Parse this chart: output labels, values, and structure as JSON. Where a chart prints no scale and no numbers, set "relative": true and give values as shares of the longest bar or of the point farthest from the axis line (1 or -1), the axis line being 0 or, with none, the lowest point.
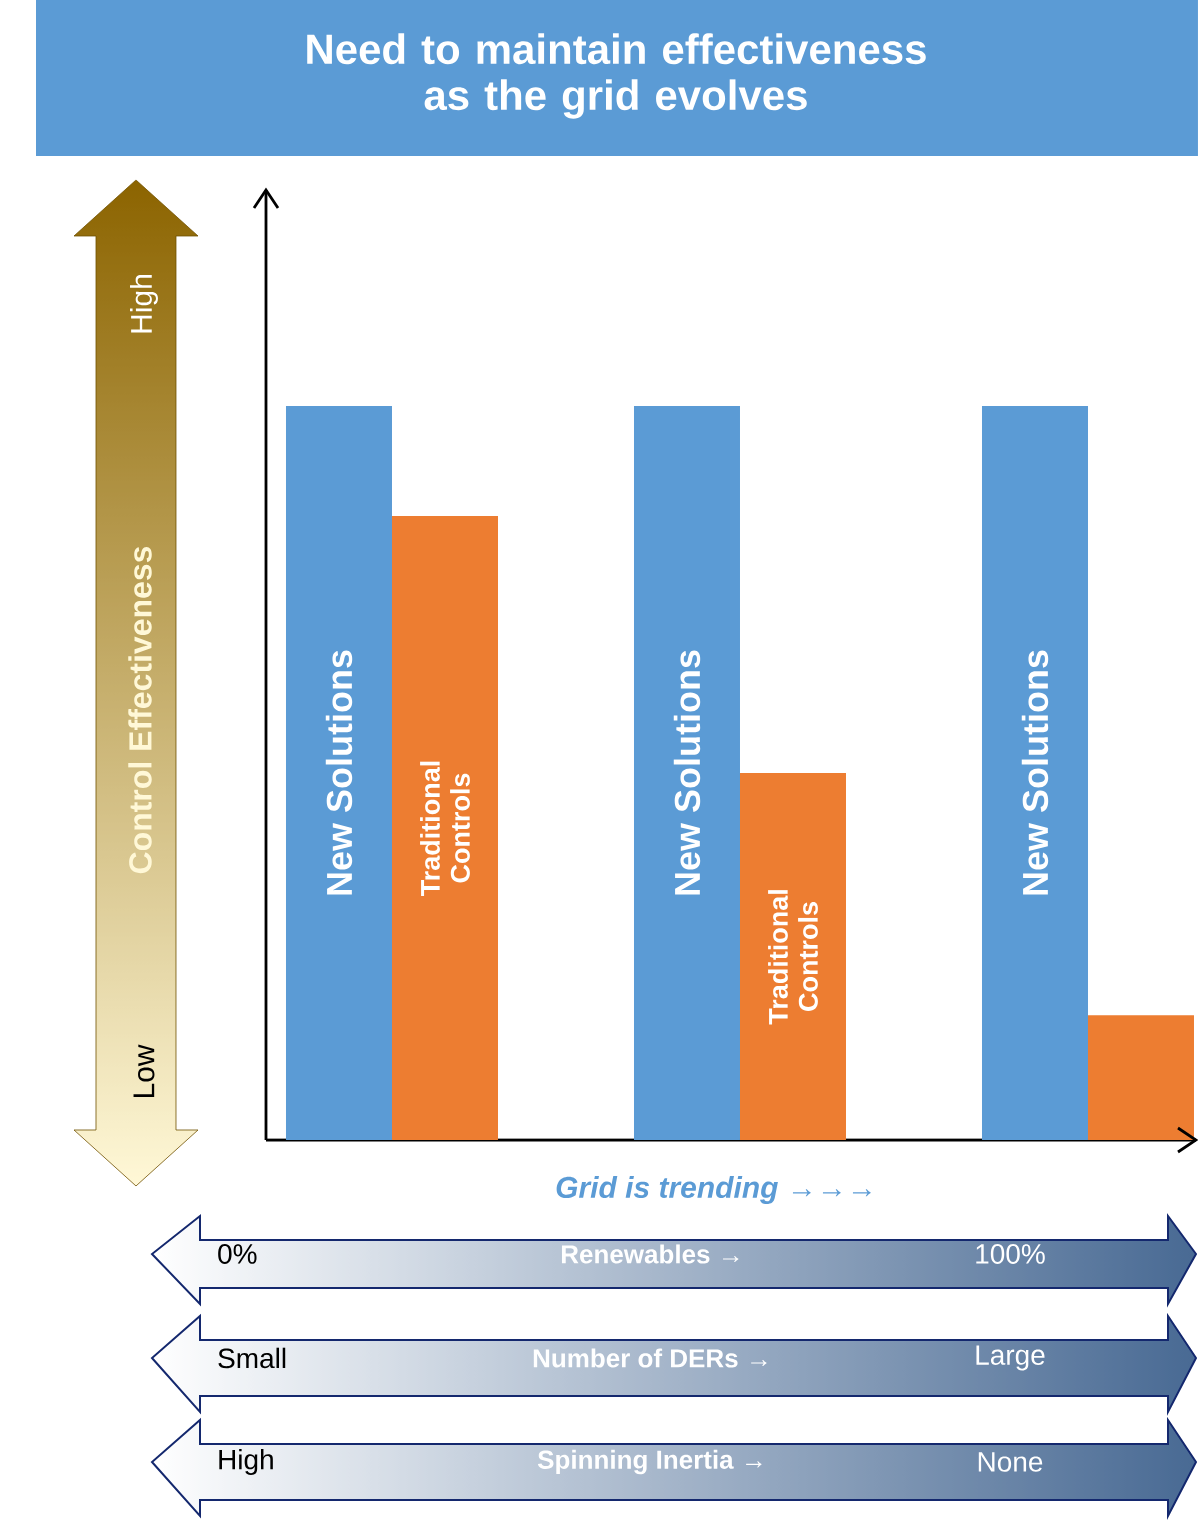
{
  "chart_data": {
    "type": "bar",
    "title": "Need to maintain effectiveness as the grid evolves",
    "xlabel": "Grid is trending →→→",
    "ylabel": "Control Effectiveness",
    "categories": [
      null,
      null,
      null
    ],
    "relative": true,
    "series": [
      {
        "name": "New Solutions",
        "color": "#5b9bd5",
        "values": [
          1,
          1,
          1
        ]
      },
      {
        "name": "Traditional Controls",
        "color": "#ed7d31",
        "values": [
          0.85,
          0.5,
          0.17
        ]
      }
    ],
    "annotations": [
      "High",
      "Low",
      "0%",
      "Renewables →",
      "100%",
      "Small",
      "Number of DERs →",
      "Large",
      "High",
      "Spinning Inertia →",
      "None"
    ]
  }
}
